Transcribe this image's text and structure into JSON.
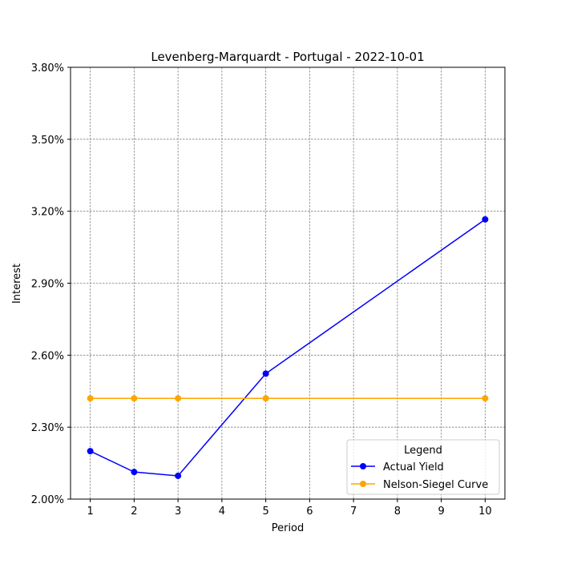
{
  "chart_data": {
    "type": "line",
    "title": "Levenberg-Marquardt - Portugal - 2022-10-01",
    "xlabel": "Period",
    "ylabel": "Interest",
    "x_ticks": [
      1,
      2,
      3,
      4,
      5,
      6,
      7,
      8,
      9,
      10
    ],
    "y_ticks": [
      "2.00%",
      "2.30%",
      "2.60%",
      "2.90%",
      "3.20%",
      "3.50%",
      "3.80%"
    ],
    "ylim": [
      2.0,
      3.8
    ],
    "y_unit": "%",
    "grid": true,
    "legend": {
      "title": "Legend",
      "placement": "lower-right"
    },
    "series": [
      {
        "name": "Actual Yield",
        "color": "#0000ff",
        "marker": "circle",
        "x": [
          1,
          2,
          3,
          5,
          10
        ],
        "y": [
          2.2,
          2.113,
          2.097,
          2.523,
          3.166
        ]
      },
      {
        "name": "Nelson-Siegel Curve",
        "color": "#ffa500",
        "marker": "circle",
        "x": [
          1,
          2,
          3,
          5,
          10
        ],
        "y": [
          2.42,
          2.42,
          2.42,
          2.42,
          2.42
        ]
      }
    ]
  }
}
